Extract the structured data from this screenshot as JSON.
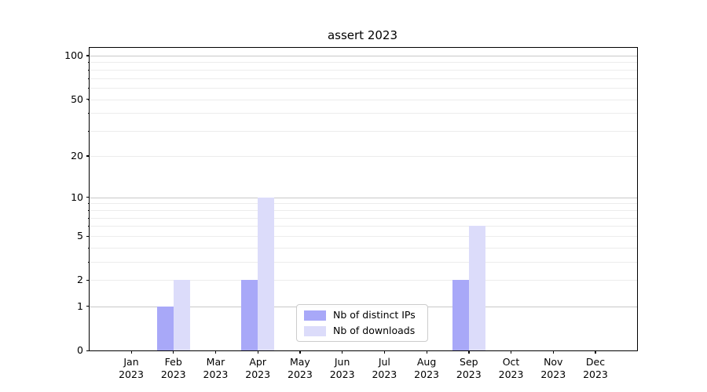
{
  "chart_data": {
    "type": "bar",
    "title": "assert 2023",
    "categories": [
      "Jan",
      "Feb",
      "Mar",
      "Apr",
      "May",
      "Jun",
      "Jul",
      "Aug",
      "Sep",
      "Oct",
      "Nov",
      "Dec"
    ],
    "year": "2023",
    "series": [
      {
        "name": "Nb of distinct IPs",
        "color": "#a8a8f8",
        "values": [
          0,
          1,
          0,
          2,
          0,
          0,
          0,
          0,
          2,
          0,
          0,
          0
        ]
      },
      {
        "name": "Nb of downloads",
        "color": "#dcdcfa",
        "values": [
          0,
          2,
          0,
          10,
          0,
          0,
          0,
          0,
          6,
          0,
          0,
          0
        ]
      }
    ],
    "xlabel": "",
    "ylabel": "",
    "yscale": "log1p",
    "ylim": [
      0,
      113
    ],
    "yticks": [
      0,
      1,
      2,
      5,
      10,
      20,
      50,
      100
    ],
    "major_gridlines": [
      1,
      10,
      100
    ],
    "minor_gridlines": [
      2,
      3,
      4,
      5,
      6,
      7,
      8,
      9,
      20,
      30,
      40,
      50,
      60,
      70,
      80,
      90
    ],
    "grid": "on",
    "legend_position": "lower center inside axes",
    "colors": {
      "major_grid": "#c8c8c8",
      "minor_grid": "#ececec",
      "axes": "#000000",
      "background": "#ffffff"
    }
  }
}
